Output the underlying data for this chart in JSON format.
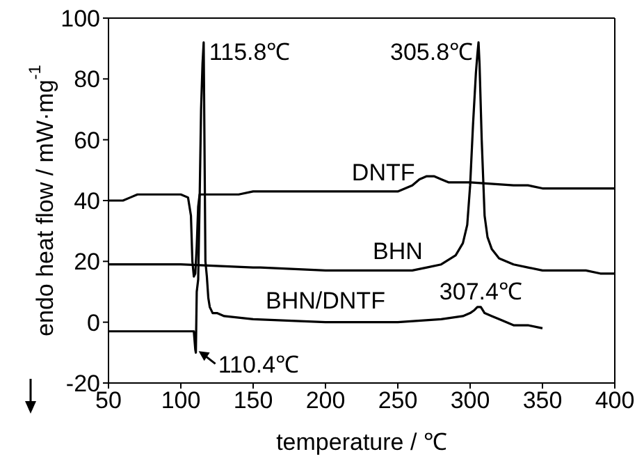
{
  "chart_data": {
    "type": "line",
    "xlabel": "temperature / ℃",
    "ylabel": "endo     heat flow / mW·mg$^{-1}$",
    "xlim": [
      50,
      400
    ],
    "xticks": [
      50,
      100,
      150,
      200,
      250,
      300,
      350,
      400
    ],
    "ylim": [
      -20,
      100
    ],
    "yticks": [
      -20,
      0,
      20,
      40,
      60,
      80,
      100
    ],
    "marker": "none",
    "line_style": "solid",
    "series": [
      {
        "name": "DNTF",
        "color": "#000000",
        "x": [
          50,
          60,
          65,
          70,
          80,
          100,
          105,
          107,
          108,
          109,
          110,
          111,
          112,
          113,
          114,
          115,
          117,
          120,
          140,
          150,
          200,
          240,
          250,
          260,
          265,
          270,
          275,
          280,
          285,
          300,
          330,
          340,
          350,
          400
        ],
        "values": [
          40,
          40,
          41,
          42,
          42,
          42,
          41,
          35,
          20,
          15,
          16,
          25,
          38,
          42,
          42,
          42,
          42,
          42,
          42,
          43,
          43,
          43,
          43,
          45,
          47,
          48,
          48,
          47,
          46,
          46,
          45,
          45,
          44,
          44
        ]
      },
      {
        "name": "BHN",
        "color": "#000000",
        "x": [
          50,
          100,
          150,
          155,
          200,
          210,
          250,
          260,
          270,
          280,
          290,
          295,
          298,
          300,
          302,
          304,
          305,
          305.8,
          306.5,
          308,
          310,
          312,
          315,
          320,
          330,
          340,
          350,
          360,
          380,
          390,
          400
        ],
        "values": [
          19,
          19,
          18,
          18,
          17,
          17,
          17,
          17,
          18,
          19,
          22,
          26,
          32,
          45,
          65,
          82,
          88,
          92,
          85,
          60,
          35,
          28,
          24,
          21,
          19,
          18,
          17,
          17,
          17,
          16,
          16
        ]
      },
      {
        "name": "BHN/DNTF",
        "color": "#000000",
        "x": [
          50,
          100,
          108,
          109,
          110,
          110.4,
          111,
          112,
          113,
          114,
          115,
          115.8,
          116.5,
          117,
          118,
          119,
          120,
          122,
          125,
          130,
          150,
          200,
          250,
          280,
          295,
          300,
          303,
          305,
          307.4,
          310,
          315,
          320,
          330,
          340,
          350
        ],
        "values": [
          -3,
          -3,
          -3,
          -3,
          -9,
          -10,
          10,
          14,
          40,
          70,
          85,
          92,
          50,
          20,
          15,
          8,
          5,
          3,
          3,
          2,
          1,
          0,
          0,
          1,
          2,
          3,
          4,
          5,
          5,
          3,
          2,
          1,
          -1,
          -1,
          -2
        ]
      }
    ],
    "annotations": [
      {
        "text": "115.8℃",
        "x": 115.8,
        "y": 92
      },
      {
        "text": "305.8℃",
        "x": 305.8,
        "y": 92
      },
      {
        "text": "110.4℃",
        "x": 110.4,
        "y": -10
      },
      {
        "text": "307.4℃",
        "x": 307.4,
        "y": 5
      }
    ]
  }
}
